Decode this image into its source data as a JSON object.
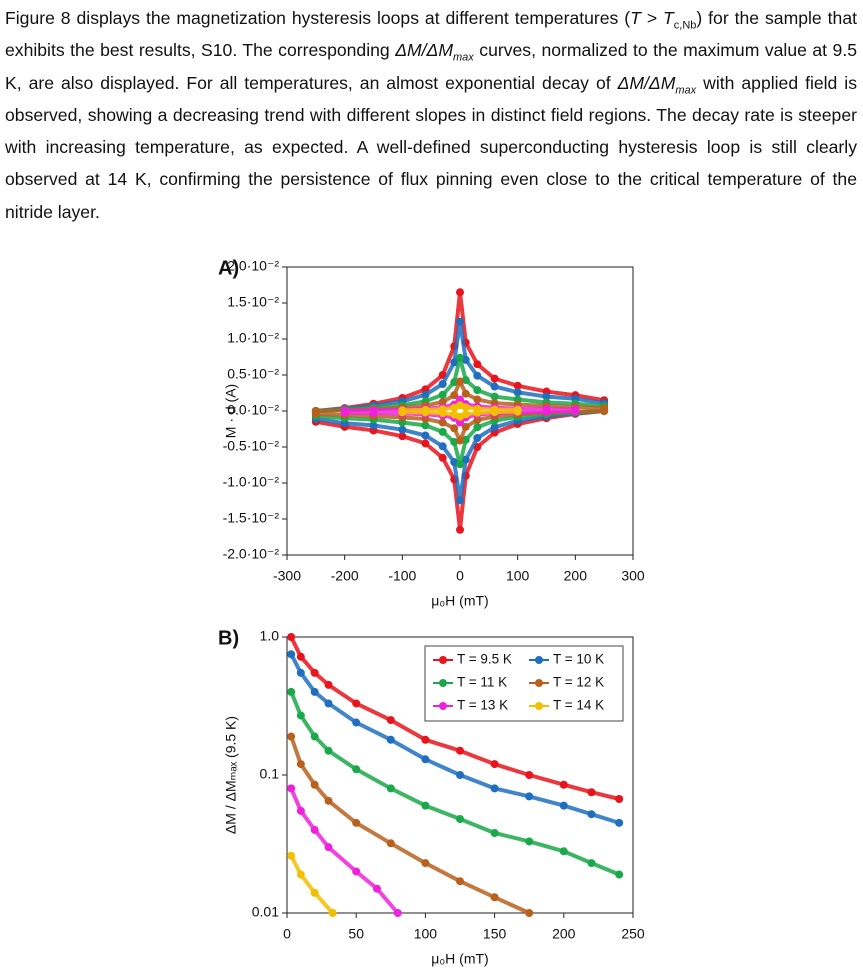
{
  "paragraph": [
    "Figure 8 displays the magnetization hysteresis loops at different temperatures (",
    "T",
    " > ",
    "T",
    "c,Nb",
    ") for the sample that exhibits the best results, S10. The corresponding ",
    "ΔM/ΔM",
    "max",
    " curves, normalized to the maximum value at 9.5 K, are also displayed. For all temperatures, an almost exponential decay of ",
    "ΔM/ΔM",
    "max",
    " with applied field is observed, showing a decreasing trend with different slopes in distinct field regions. The decay rate is steeper with increasing temperature, as expected. A well-defined superconducting hysteresis loop is still clearly observed at 14 K, confirming the persistence of flux pinning even close to the critical temperature of the nitride layer."
  ],
  "chart_data": [
    {
      "type": "scatter",
      "panel_label": "A)",
      "x_label": "μ₀H (mT)",
      "y_label": "M · d (A)",
      "xlim": [
        -300,
        300
      ],
      "xticks": [
        -300,
        -200,
        -100,
        0,
        100,
        200,
        300
      ],
      "ylim": [
        -0.02,
        0.02
      ],
      "yticks": [
        {
          "value": -0.02,
          "label": "-2.0·10⁻²"
        },
        {
          "value": -0.015,
          "label": "-1.5·10⁻²"
        },
        {
          "value": -0.01,
          "label": "-1.0·10⁻²"
        },
        {
          "value": -0.005,
          "label": "-0.5·10⁻²"
        },
        {
          "value": 0,
          "label": "0.0·10⁻²"
        },
        {
          "value": 0.005,
          "label": "0.5·10⁻²"
        },
        {
          "value": 0.01,
          "label": "1.0·10⁻²"
        },
        {
          "value": 0.015,
          "label": "1.5·10⁻²"
        },
        {
          "value": 0.02,
          "label": "2.0·10⁻²"
        }
      ],
      "series": [
        {
          "color": "#e8141c",
          "x": [
            -250,
            -200,
            -150,
            -100,
            -60,
            -30,
            -10,
            0,
            10,
            30,
            60,
            100,
            150,
            200,
            250,
            250,
            200,
            150,
            100,
            60,
            30,
            10,
            0,
            -10,
            -30,
            -60,
            -100,
            -150,
            -200,
            -250
          ],
          "y": [
            0,
            0.0004,
            0.001,
            0.0018,
            0.003,
            0.005,
            0.009,
            0.0165,
            0.0095,
            0.0065,
            0.0045,
            0.0035,
            0.0027,
            0.0022,
            0.0015,
            0,
            -0.0004,
            -0.001,
            -0.0018,
            -0.003,
            -0.005,
            -0.009,
            -0.0165,
            -0.0095,
            -0.0065,
            -0.0045,
            -0.0035,
            -0.0027,
            -0.0022,
            -0.0015
          ]
        },
        {
          "color": "#1f6ebf",
          "x": [
            -250,
            -200,
            -150,
            -100,
            -60,
            -30,
            -10,
            0,
            10,
            30,
            60,
            100,
            150,
            200,
            250,
            250,
            200,
            150,
            100,
            60,
            30,
            10,
            0,
            -10,
            -30,
            -60,
            -100,
            -150,
            -200,
            -250
          ],
          "y": [
            0,
            0.0003,
            0.00075,
            0.00135,
            0.00225,
            0.00375,
            0.00675,
            0.0124,
            0.0071,
            0.0049,
            0.0034,
            0.0026,
            0.002,
            0.0017,
            0.0011,
            0,
            -0.0003,
            -0.00075,
            -0.00135,
            -0.00225,
            -0.00375,
            -0.00675,
            -0.0124,
            -0.0071,
            -0.0049,
            -0.0034,
            -0.0026,
            -0.002,
            -0.0017,
            -0.0011
          ]
        },
        {
          "color": "#1aa84a",
          "x": [
            -250,
            -200,
            -150,
            -100,
            -60,
            -30,
            -10,
            0,
            10,
            30,
            60,
            100,
            150,
            200,
            250,
            250,
            200,
            150,
            100,
            60,
            30,
            10,
            0,
            -10,
            -30,
            -60,
            -100,
            -150,
            -200,
            -250
          ],
          "y": [
            0,
            0.0002,
            0.00045,
            0.0008,
            0.00135,
            0.00225,
            0.004,
            0.0074,
            0.0043,
            0.0029,
            0.002,
            0.0016,
            0.0012,
            0.001,
            0.0007,
            0,
            -0.0002,
            -0.00045,
            -0.0008,
            -0.00135,
            -0.00225,
            -0.004,
            -0.0074,
            -0.0043,
            -0.0029,
            -0.002,
            -0.0016,
            -0.0012,
            -0.001,
            -0.0007
          ]
        },
        {
          "color": "#b8601e",
          "x": [
            -250,
            -200,
            -150,
            -100,
            -60,
            -30,
            -10,
            0,
            10,
            30,
            60,
            100,
            150,
            200,
            250,
            250,
            200,
            150,
            100,
            60,
            30,
            10,
            0,
            -10,
            -30,
            -60,
            -100,
            -150,
            -200,
            -250
          ],
          "y": [
            0,
            0.0001,
            0.00025,
            0.00045,
            0.00075,
            0.00125,
            0.0022,
            0.0041,
            0.0024,
            0.0016,
            0.0011,
            0.0009,
            0.0007,
            0.00055,
            0.0004,
            0,
            -0.0001,
            -0.00025,
            -0.00045,
            -0.00075,
            -0.00125,
            -0.0022,
            -0.0041,
            -0.0024,
            -0.0016,
            -0.0011,
            -0.0009,
            -0.0007,
            -0.00055,
            -0.0004
          ]
        },
        {
          "color": "#ee22dd",
          "x": [
            -200,
            -150,
            -100,
            -60,
            -30,
            -10,
            0,
            10,
            30,
            60,
            100,
            150,
            200,
            200,
            150,
            100,
            60,
            30,
            10,
            0,
            -10,
            -30,
            -60,
            -100,
            -150,
            -200
          ],
          "y": [
            4e-05,
            0.0001,
            0.00018,
            0.0003,
            0.0005,
            0.0009,
            0.0016,
            0.00095,
            0.00065,
            0.00045,
            0.00035,
            0.00027,
            0.00022,
            -4e-05,
            -0.0001,
            -0.00018,
            -0.0003,
            -0.0005,
            -0.0009,
            -0.0016,
            -0.00095,
            -0.00065,
            -0.00045,
            -0.00035,
            -0.00027,
            -0.00022
          ]
        },
        {
          "color": "#f2c000",
          "x": [
            -100,
            -60,
            -30,
            -10,
            0,
            10,
            30,
            60,
            100,
            100,
            60,
            30,
            10,
            0,
            -10,
            -30,
            -60,
            -100
          ],
          "y": [
            9e-05,
            0.00015,
            0.00025,
            0.00045,
            0.0008,
            0.0005,
            0.0003,
            0.0002,
            0.00018,
            -9e-05,
            -0.00015,
            -0.00025,
            -0.00045,
            -0.0008,
            -0.0005,
            -0.0003,
            -0.0002,
            -0.00018
          ]
        }
      ]
    },
    {
      "type": "scatter",
      "panel_label": "B)",
      "x_label": "μ₀H (mT)",
      "y_label": "ΔM / ΔMₘₐₓ (9.5 K)",
      "yscale": "log",
      "legend": "upper right",
      "xlim": [
        0,
        250
      ],
      "xticks": [
        0,
        50,
        100,
        150,
        200,
        250
      ],
      "ylim": [
        0.01,
        1
      ],
      "yticks": [
        0.01,
        0.1,
        {
          "value": 1,
          "label": "1.0"
        }
      ],
      "series": [
        {
          "name": "T = 9.5 K",
          "color": "#e8141c",
          "x": [
            3,
            10,
            20,
            30,
            50,
            75,
            100,
            125,
            150,
            175,
            200,
            220,
            240
          ],
          "y": [
            1.0,
            0.72,
            0.55,
            0.45,
            0.33,
            0.25,
            0.18,
            0.15,
            0.12,
            0.1,
            0.085,
            0.075,
            0.067
          ]
        },
        {
          "name": "T = 10 K",
          "color": "#1f6ebf",
          "x": [
            3,
            10,
            20,
            30,
            50,
            75,
            100,
            125,
            150,
            175,
            200,
            220,
            240
          ],
          "y": [
            0.75,
            0.55,
            0.4,
            0.33,
            0.24,
            0.18,
            0.13,
            0.1,
            0.08,
            0.07,
            0.06,
            0.052,
            0.045
          ]
        },
        {
          "name": "T = 11 K",
          "color": "#1aa84a",
          "x": [
            3,
            10,
            20,
            30,
            50,
            75,
            100,
            125,
            150,
            175,
            200,
            220,
            240
          ],
          "y": [
            0.4,
            0.27,
            0.19,
            0.15,
            0.11,
            0.08,
            0.06,
            0.048,
            0.038,
            0.033,
            0.028,
            0.023,
            0.019
          ]
        },
        {
          "name": "T = 12 K",
          "color": "#b8601e",
          "x": [
            3,
            10,
            20,
            30,
            50,
            75,
            100,
            125,
            150,
            175
          ],
          "y": [
            0.19,
            0.12,
            0.085,
            0.065,
            0.045,
            0.032,
            0.023,
            0.017,
            0.013,
            0.01
          ]
        },
        {
          "name": "T = 13 K",
          "color": "#ee22dd",
          "x": [
            3,
            10,
            20,
            30,
            50,
            65,
            80
          ],
          "y": [
            0.08,
            0.055,
            0.04,
            0.03,
            0.02,
            0.015,
            0.01
          ]
        },
        {
          "name": "T = 14 K",
          "color": "#f2c000",
          "x": [
            3,
            10,
            20,
            33
          ],
          "y": [
            0.026,
            0.019,
            0.014,
            0.01
          ]
        }
      ]
    }
  ]
}
